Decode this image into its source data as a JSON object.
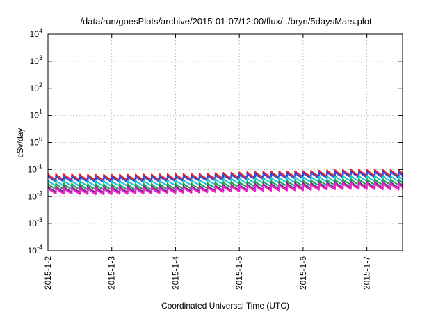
{
  "chart_data": {
    "type": "line",
    "title": "/data/run/goesPlots/archive/2015-01-07/12:00/flux/../bryn/5daysMars.plot",
    "xlabel": "Coordinated Universal Time (UTC)",
    "ylabel": "cSv/day",
    "yscale": "log",
    "ylim": [
      0.0001,
      10000
    ],
    "xlim_days": [
      0,
      5.56
    ],
    "grid": true,
    "y_ticks": [
      {
        "base": "10",
        "exp": "-4",
        "value": 0.0001
      },
      {
        "base": "10",
        "exp": "-3",
        "value": 0.001
      },
      {
        "base": "10",
        "exp": "-2",
        "value": 0.01
      },
      {
        "base": "10",
        "exp": "-1",
        "value": 0.1
      },
      {
        "base": "10",
        "exp": "0",
        "value": 1
      },
      {
        "base": "10",
        "exp": "1",
        "value": 10
      },
      {
        "base": "10",
        "exp": "2",
        "value": 100
      },
      {
        "base": "10",
        "exp": "3",
        "value": 1000
      },
      {
        "base": "10",
        "exp": "4",
        "value": 10000
      }
    ],
    "x_ticks": [
      {
        "label": "2015-1-2",
        "day": 0
      },
      {
        "label": "2015-1-3",
        "day": 1
      },
      {
        "label": "2015-1-4",
        "day": 2
      },
      {
        "label": "2015-1-5",
        "day": 3
      },
      {
        "label": "2015-1-6",
        "day": 4
      },
      {
        "label": "2015-1-7",
        "day": 5
      }
    ],
    "sawtooth_period_days": 0.125,
    "series": [
      {
        "color": "#e8202a",
        "peaks": [
          0.068,
          0.064,
          0.066,
          0.07,
          0.082,
          0.088,
          0.1,
          0.095
        ],
        "troughs": [
          0.042,
          0.04,
          0.041,
          0.044,
          0.05,
          0.054,
          0.06,
          0.058
        ]
      },
      {
        "color": "#2a4ce0",
        "peaks": [
          0.058,
          0.055,
          0.057,
          0.06,
          0.07,
          0.076,
          0.086,
          0.082
        ],
        "troughs": [
          0.036,
          0.034,
          0.035,
          0.038,
          0.043,
          0.047,
          0.052,
          0.05
        ]
      },
      {
        "color": "#22c8c8",
        "peaks": [
          0.04,
          0.038,
          0.039,
          0.042,
          0.049,
          0.053,
          0.06,
          0.057
        ],
        "troughs": [
          0.025,
          0.024,
          0.025,
          0.027,
          0.031,
          0.033,
          0.037,
          0.036
        ]
      },
      {
        "color": "#1fa050",
        "peaks": [
          0.03,
          0.028,
          0.029,
          0.031,
          0.036,
          0.039,
          0.044,
          0.042
        ],
        "troughs": [
          0.019,
          0.018,
          0.018,
          0.02,
          0.023,
          0.025,
          0.028,
          0.027
        ]
      },
      {
        "color": "#7a2a8a",
        "peaks": [
          0.024,
          0.023,
          0.024,
          0.025,
          0.029,
          0.032,
          0.036,
          0.034
        ],
        "troughs": [
          0.015,
          0.014,
          0.015,
          0.016,
          0.018,
          0.02,
          0.022,
          0.021
        ]
      },
      {
        "color": "#ee22cc",
        "peaks": [
          0.021,
          0.02,
          0.021,
          0.022,
          0.026,
          0.028,
          0.032,
          0.03
        ],
        "troughs": [
          0.013,
          0.012,
          0.013,
          0.014,
          0.016,
          0.017,
          0.019,
          0.018
        ]
      }
    ]
  }
}
